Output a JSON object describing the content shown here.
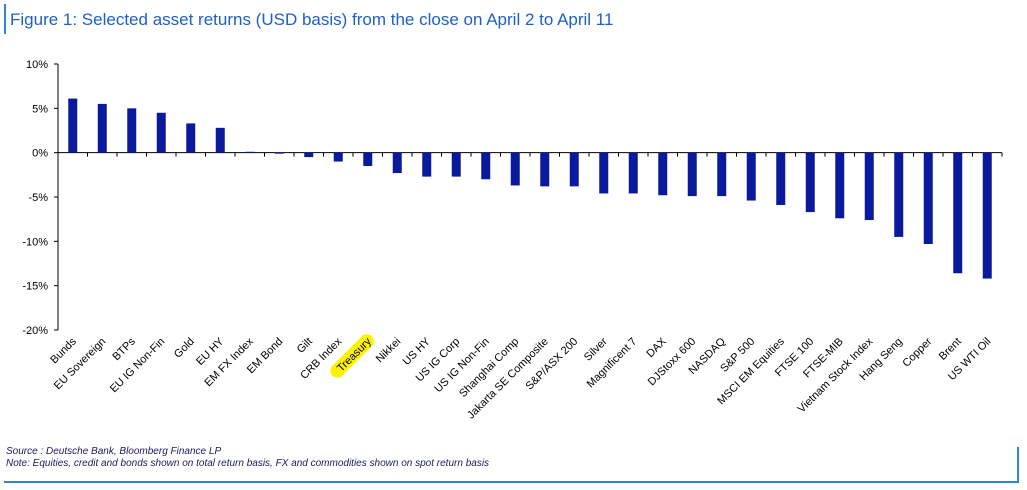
{
  "title": "Figure 1: Selected asset returns (USD basis) from the close on April 2 to April 11",
  "source": "Source : Deutsche Bank, Bloomberg Finance LP",
  "note": "Note: Equities, credit and bonds shown on total return basis, FX and commodities shown on spot return basis",
  "colors": {
    "title": "#1f5fc7",
    "bar": "#0b1a9c",
    "frame": "#2e86d8",
    "highlight": "#fff200",
    "footer": "#1b1b60"
  },
  "chart_data": {
    "type": "bar",
    "categories": [
      "Bunds",
      "EU Sovereign",
      "BTPs",
      "EU IG Non-Fin",
      "Gold",
      "EU HY",
      "EM FX Index",
      "EM Bond",
      "Gilt",
      "CRB Index",
      "Treasury",
      "Nikkei",
      "US HY",
      "US IG Corp",
      "US IG Non-Fin",
      "Shanghai Comp",
      "Jakarta SE Composite",
      "S&P/ASX 200",
      "Silver",
      "Magnificent 7",
      "DAX",
      "DJStoxx 600",
      "NASDAQ",
      "S&P 500",
      "MSCI EM Equities",
      "FTSE 100",
      "FTSE-MIB",
      "Vietnam Stock Index",
      "Hang Seng",
      "Copper",
      "Brent",
      "US WTI Oil"
    ],
    "values": [
      6.1,
      5.5,
      5.0,
      4.5,
      3.3,
      2.8,
      0.1,
      -0.1,
      -0.5,
      -1.0,
      -1.5,
      -2.3,
      -2.7,
      -2.7,
      -3.0,
      -3.7,
      -3.8,
      -3.8,
      -4.6,
      -4.6,
      -4.8,
      -4.9,
      -4.9,
      -5.4,
      -5.9,
      -6.7,
      -7.4,
      -7.6,
      -9.5,
      -10.3,
      -13.6,
      -14.2
    ],
    "ylim": [
      -20,
      10
    ],
    "yticks": [
      10,
      5,
      0,
      -5,
      -10,
      -15,
      -20
    ],
    "ytick_labels": [
      "10%",
      "5%",
      "0%",
      "-5%",
      "-10%",
      "-15%",
      "-20%"
    ],
    "highlighted_category": "Treasury",
    "xlabel": "",
    "ylabel": ""
  }
}
